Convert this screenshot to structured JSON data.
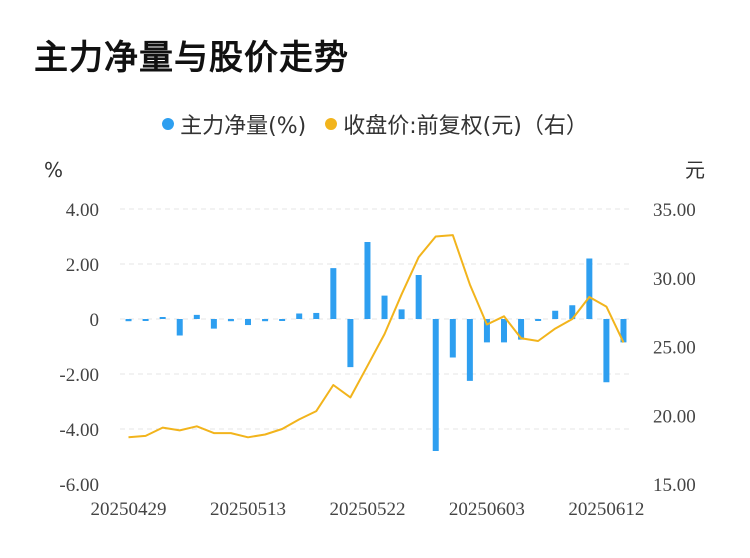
{
  "title": "主力净量与股价走势",
  "legend": {
    "series1": "主力净量(%)",
    "series2": "收盘价:前复权(元)（右）"
  },
  "colors": {
    "bar": "#2e9ff0",
    "line": "#f2b41c",
    "grid": "#e4e4e4"
  },
  "chart_data": {
    "type": "bar+line",
    "title": "主力净量与股价走势",
    "left_axis": {
      "unit": "%",
      "ylim": [
        -6,
        4
      ],
      "ticks": [
        "4.00",
        "2.00",
        "0",
        "-2.00",
        "-4.00",
        "-6.00"
      ]
    },
    "right_axis": {
      "unit": "元",
      "ylim": [
        15,
        35
      ],
      "ticks": [
        "35.00",
        "30.00",
        "25.00",
        "20.00",
        "15.00"
      ]
    },
    "x_tick_labels": [
      "20250429",
      "20250513",
      "20250522",
      "20250603",
      "20250612"
    ],
    "x_tick_index": [
      0,
      7,
      14,
      21,
      28
    ],
    "series": [
      {
        "name": "主力净量(%)",
        "kind": "bar",
        "values": [
          -0.08,
          -0.03,
          0.05,
          -0.6,
          0.15,
          -0.35,
          -0.08,
          -0.22,
          -0.08,
          -0.03,
          0.2,
          0.22,
          1.85,
          -1.75,
          2.8,
          0.85,
          0.35,
          1.6,
          -4.8,
          -1.4,
          -2.25,
          -0.85,
          -0.85,
          -0.75,
          -0.05,
          0.3,
          0.5,
          2.2,
          -2.3,
          -0.85
        ]
      },
      {
        "name": "收盘价:前复权(元)（右）",
        "kind": "line",
        "values": [
          18.4,
          18.5,
          19.1,
          18.9,
          19.2,
          18.7,
          18.7,
          18.4,
          18.6,
          19.0,
          19.7,
          20.3,
          22.2,
          21.3,
          23.6,
          25.9,
          28.8,
          31.5,
          33.0,
          33.1,
          29.5,
          26.6,
          27.2,
          25.6,
          25.4,
          26.3,
          27.0,
          28.6,
          27.9,
          25.3
        ]
      }
    ]
  }
}
